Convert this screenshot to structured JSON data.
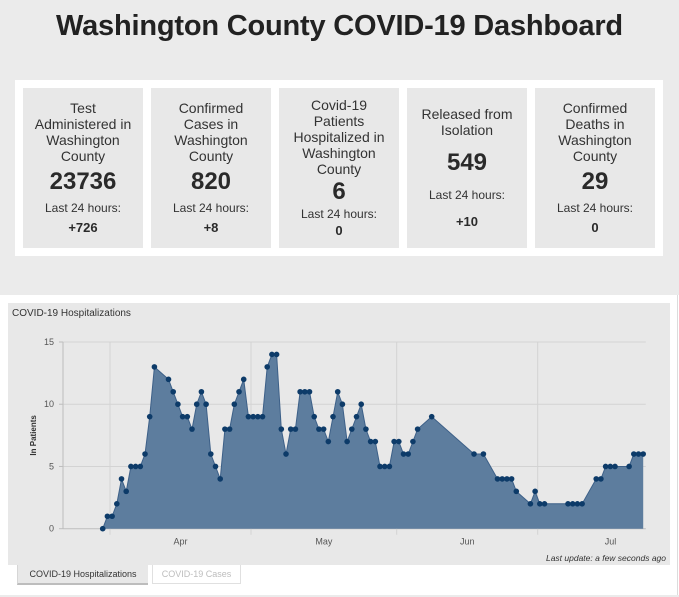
{
  "header": {
    "title": "Washington County COVID-19 Dashboard"
  },
  "stats": [
    {
      "title": "Test\nAdministered in\nWashington\nCounty",
      "value": "23736",
      "delta_label": "Last 24 hours:",
      "delta": "+726"
    },
    {
      "title": "Confirmed\nCases in\nWashington\nCounty",
      "value": "820",
      "delta_label": "Last 24 hours:",
      "delta": "+8"
    },
    {
      "title": "Covid-19\nPatients\nHospitalized in\nWashington\nCounty",
      "value": "6",
      "delta_label": "Last 24 hours:",
      "delta": "0"
    },
    {
      "title": "Released from\nIsolation",
      "value": "549",
      "delta_label": "Last 24 hours:",
      "delta": "+10"
    },
    {
      "title": "Confirmed\nDeaths in\nWashington\nCounty",
      "value": "29",
      "delta_label": "Last 24 hours:",
      "delta": "0"
    }
  ],
  "chart_panel": {
    "last_update": "Last update: a few seconds ago"
  },
  "tabs": [
    {
      "label": "COVID-19 Hospitalizations",
      "active": true
    },
    {
      "label": "COVID-19 Cases",
      "active": false
    }
  ],
  "colors": {
    "page_background": "#ebebeb",
    "card_background": "#e8e8e8",
    "area_fill": "#5d7d9e",
    "area_line": "#3d6088",
    "marker": "#0d3b69",
    "grid": "#d3d3d3"
  },
  "chart_data": {
    "type": "area",
    "title": "COVID-19 Hospitalizations",
    "xlabel": "",
    "ylabel": "In Patients",
    "ylim": [
      0,
      15
    ],
    "yticks": [
      0,
      5,
      10,
      15
    ],
    "xlim": [
      "Mar 22",
      "Jul 24"
    ],
    "xtick_labels": [
      "Apr",
      "May",
      "Jun",
      "Jul"
    ],
    "grid": true,
    "markers": true,
    "legend": "none",
    "series": [
      {
        "name": "Hospitalizations",
        "x": [
          "Mar 30",
          "Mar 31",
          "Apr 1",
          "Apr 2",
          "Apr 3",
          "Apr 4",
          "Apr 5",
          "Apr 6",
          "Apr 7",
          "Apr 8",
          "Apr 9",
          "Apr 10",
          "Apr 13",
          "Apr 14",
          "Apr 15",
          "Apr 16",
          "Apr 17",
          "Apr 18",
          "Apr 19",
          "Apr 20",
          "Apr 21",
          "Apr 22",
          "Apr 23",
          "Apr 24",
          "Apr 25",
          "Apr 26",
          "Apr 27",
          "Apr 28",
          "Apr 29",
          "Apr 30",
          "May 1",
          "May 2",
          "May 3",
          "May 4",
          "May 5",
          "May 6",
          "May 7",
          "May 8",
          "May 9",
          "May 10",
          "May 11",
          "May 12",
          "May 13",
          "May 14",
          "May 15",
          "May 16",
          "May 17",
          "May 18",
          "May 19",
          "May 20",
          "May 21",
          "May 22",
          "May 23",
          "May 24",
          "May 25",
          "May 26",
          "May 27",
          "May 28",
          "May 29",
          "May 30",
          "May 31",
          "Jun 1",
          "Jun 2",
          "Jun 3",
          "Jun 4",
          "Jun 5",
          "Jun 8",
          "Jun 17",
          "Jun 19",
          "Jun 22",
          "Jun 23",
          "Jun 24",
          "Jun 25",
          "Jun 26",
          "Jun 29",
          "Jun 30",
          "Jul 1",
          "Jul 2",
          "Jul 7",
          "Jul 8",
          "Jul 9",
          "Jul 10",
          "Jul 13",
          "Jul 14",
          "Jul 15",
          "Jul 16",
          "Jul 17",
          "Jul 20",
          "Jul 21",
          "Jul 22",
          "Jul 23"
        ],
        "y": [
          0,
          1,
          1,
          2,
          4,
          3,
          5,
          5,
          5,
          6,
          9,
          13,
          12,
          11,
          10,
          9,
          9,
          8,
          10,
          11,
          10,
          6,
          5,
          4,
          8,
          8,
          10,
          11,
          12,
          9,
          9,
          9,
          9,
          13,
          14,
          14,
          8,
          6,
          8,
          8,
          11,
          11,
          11,
          9,
          8,
          8,
          7,
          9,
          11,
          10,
          7,
          8,
          9,
          10,
          8,
          7,
          7,
          5,
          5,
          5,
          7,
          7,
          6,
          6,
          7,
          8,
          9,
          6,
          6,
          4,
          4,
          4,
          4,
          3,
          2,
          3,
          2,
          2,
          2,
          2,
          2,
          2,
          4,
          4,
          5,
          5,
          5,
          5,
          6,
          6,
          6
        ]
      }
    ]
  }
}
